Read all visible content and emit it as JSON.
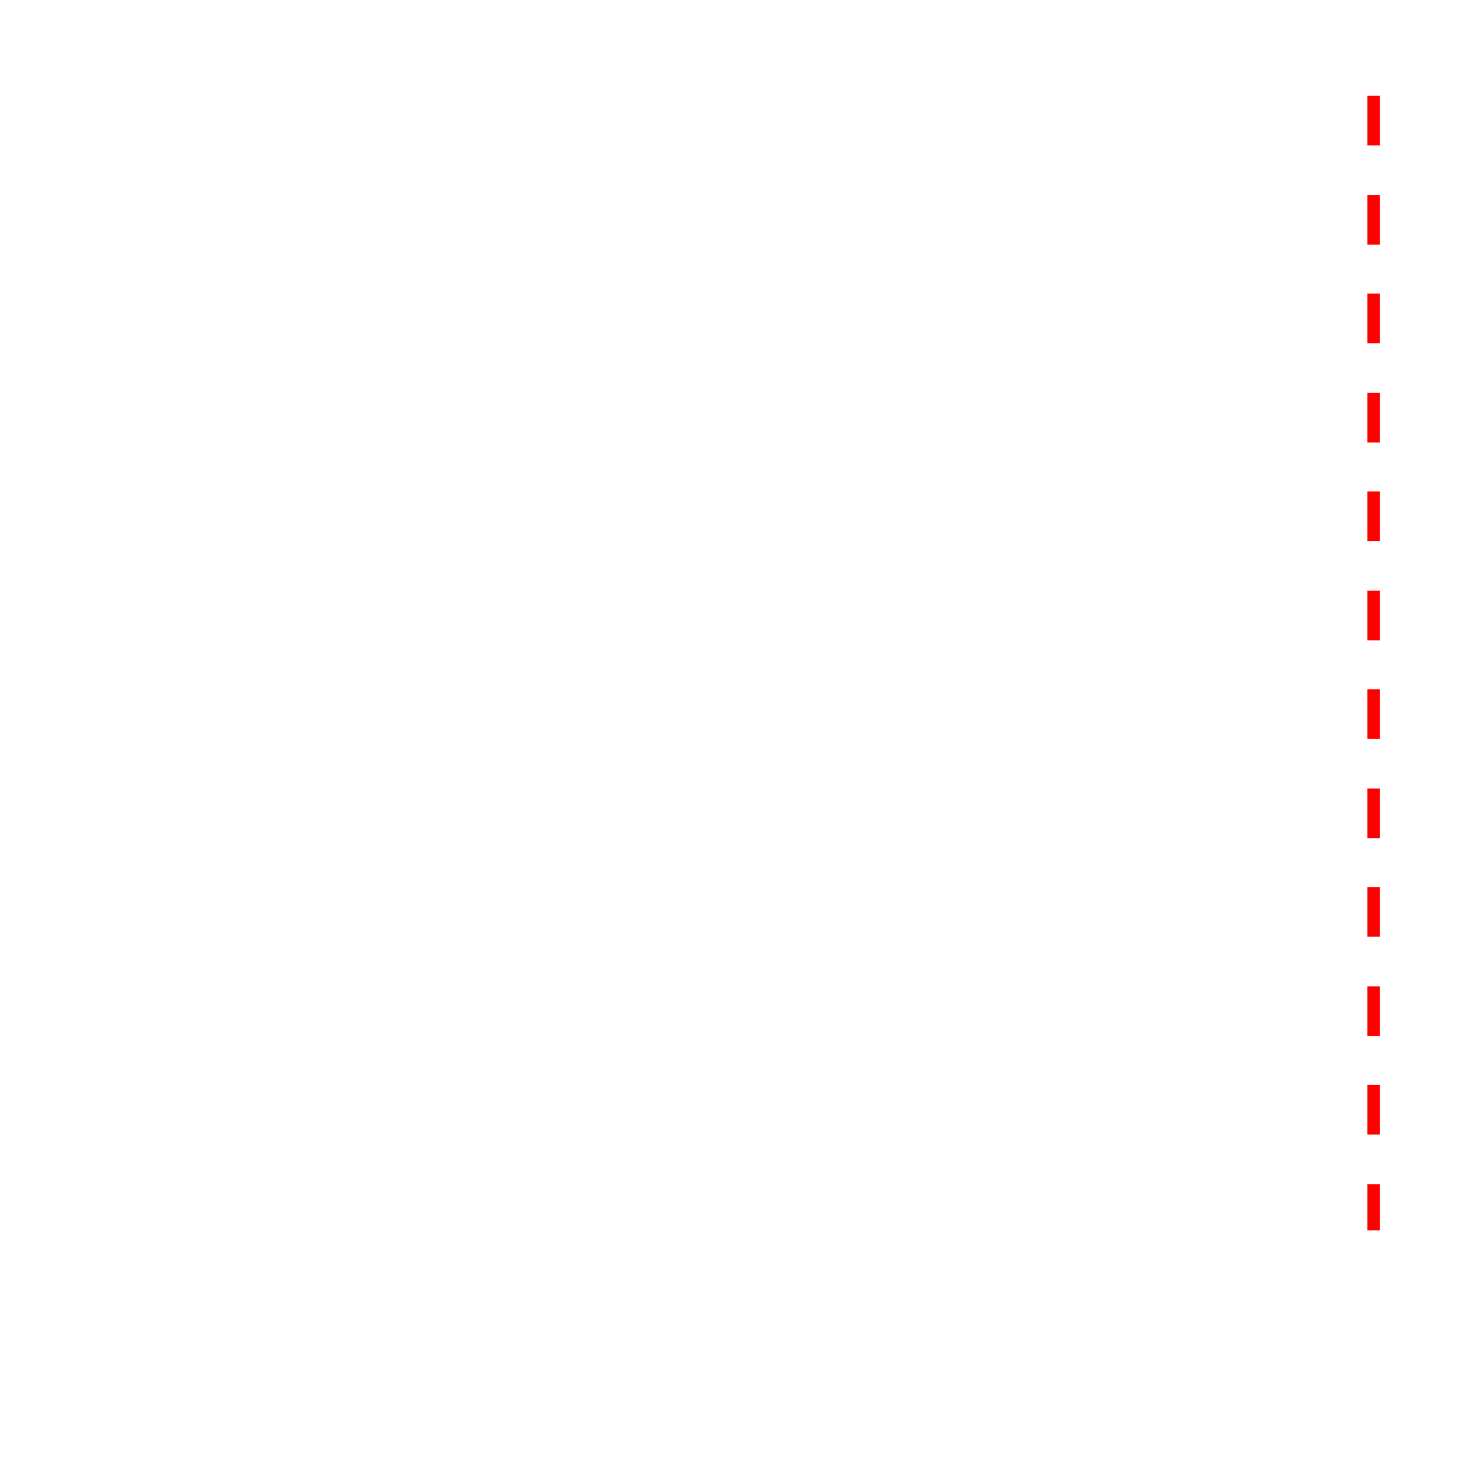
{
  "canvas": {
    "background_color": "#ffffff"
  },
  "dashed_line": {
    "orientation": "vertical",
    "color": "#ff0000",
    "segment_count": 12
  }
}
